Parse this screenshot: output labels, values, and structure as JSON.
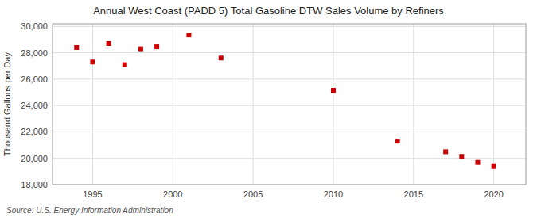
{
  "chart_data": {
    "type": "scatter",
    "title": "Annual West Coast (PADD 5) Total Gasoline DTW Sales Volume by Refiners",
    "ylabel": "Thousand Gallons per Day",
    "source": "Source: U.S. Energy Information Administration",
    "x": [
      1994,
      1995,
      1996,
      1997,
      1998,
      1999,
      2001,
      2003,
      2010,
      2014,
      2017,
      2018,
      2019,
      2020
    ],
    "values": [
      28400,
      27300,
      28700,
      27100,
      28300,
      28450,
      29350,
      27600,
      25150,
      21300,
      20500,
      20150,
      19700,
      19400
    ],
    "color": "#cc0000",
    "marker": "square",
    "xlim": [
      1992.5,
      2022
    ],
    "ylim": [
      18000,
      30200
    ],
    "xticks": [
      1995,
      2000,
      2005,
      2010,
      2015,
      2020
    ],
    "yticks": [
      {
        "value": 18000,
        "label": "18,000"
      },
      {
        "value": 20000,
        "label": "20,000"
      },
      {
        "value": 22000,
        "label": "22,000"
      },
      {
        "value": 24000,
        "label": "24,000"
      },
      {
        "value": 26000,
        "label": "26,000"
      },
      {
        "value": 28000,
        "label": "28,000"
      },
      {
        "value": 30000,
        "label": "30,000"
      }
    ],
    "grid": true
  }
}
